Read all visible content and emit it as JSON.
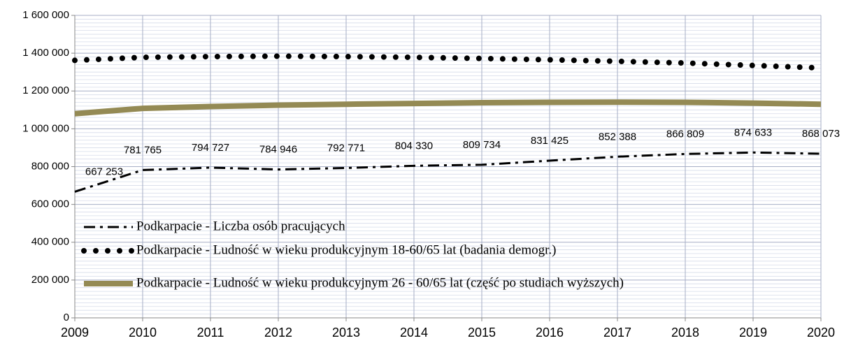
{
  "chart_data": {
    "type": "line",
    "x": [
      2009,
      2010,
      2011,
      2012,
      2013,
      2014,
      2015,
      2016,
      2017,
      2018,
      2019,
      2020
    ],
    "xlim": [
      2009,
      2020
    ],
    "xticks": [
      2009,
      2010,
      2011,
      2012,
      2013,
      2014,
      2015,
      2016,
      2017,
      2018,
      2019,
      2020
    ],
    "ylim": [
      0,
      1600000
    ],
    "yticks": [
      0,
      {
        "value": 200000,
        "label": "200 000"
      },
      {
        "value": 400000,
        "label": "400 000"
      },
      {
        "value": 600000,
        "label": "600 000"
      },
      {
        "value": 800000,
        "label": "800 000"
      },
      {
        "value": 1000000,
        "label": "1 000 000"
      },
      {
        "value": 1200000,
        "label": "1 200 000"
      },
      {
        "value": 1400000,
        "label": "1 400 000"
      },
      {
        "value": 1600000,
        "label": "1 600 000"
      }
    ],
    "grid": true,
    "legend": "lower left",
    "series": [
      {
        "name": "Podkarpacie - Liczba osób pracujących",
        "color": "#000000",
        "line_style": "dashdot",
        "values": [
          667253,
          781765,
          794727,
          784946,
          792771,
          804330,
          809734,
          831425,
          852388,
          866809,
          874633,
          868073
        ],
        "value_labels": [
          "667 253",
          "781 765",
          "794 727",
          "784 946",
          "792 771",
          "804 330",
          "809 734",
          "831 425",
          "852 388",
          "866 809",
          "874 633",
          "868 073"
        ]
      },
      {
        "name": "Podkarpacie - Ludność w wieku produkcyjnym 18-60/65 lat (badania demogr.)",
        "color": "#000000",
        "line_style": "dotted",
        "values": [
          1362000,
          1378000,
          1382000,
          1384000,
          1382000,
          1378000,
          1372000,
          1365000,
          1357000,
          1348000,
          1335000,
          1322000
        ]
      },
      {
        "name": "Podkarpacie - Ludność w wieku produkcyjnym 26 - 60/65 lat (część po studiach wyższych)",
        "color": "#948a54",
        "line_style": "solid",
        "values": [
          1080000,
          1108000,
          1118000,
          1125000,
          1130000,
          1134000,
          1138000,
          1140000,
          1141000,
          1140000,
          1136000,
          1130000
        ]
      }
    ]
  }
}
